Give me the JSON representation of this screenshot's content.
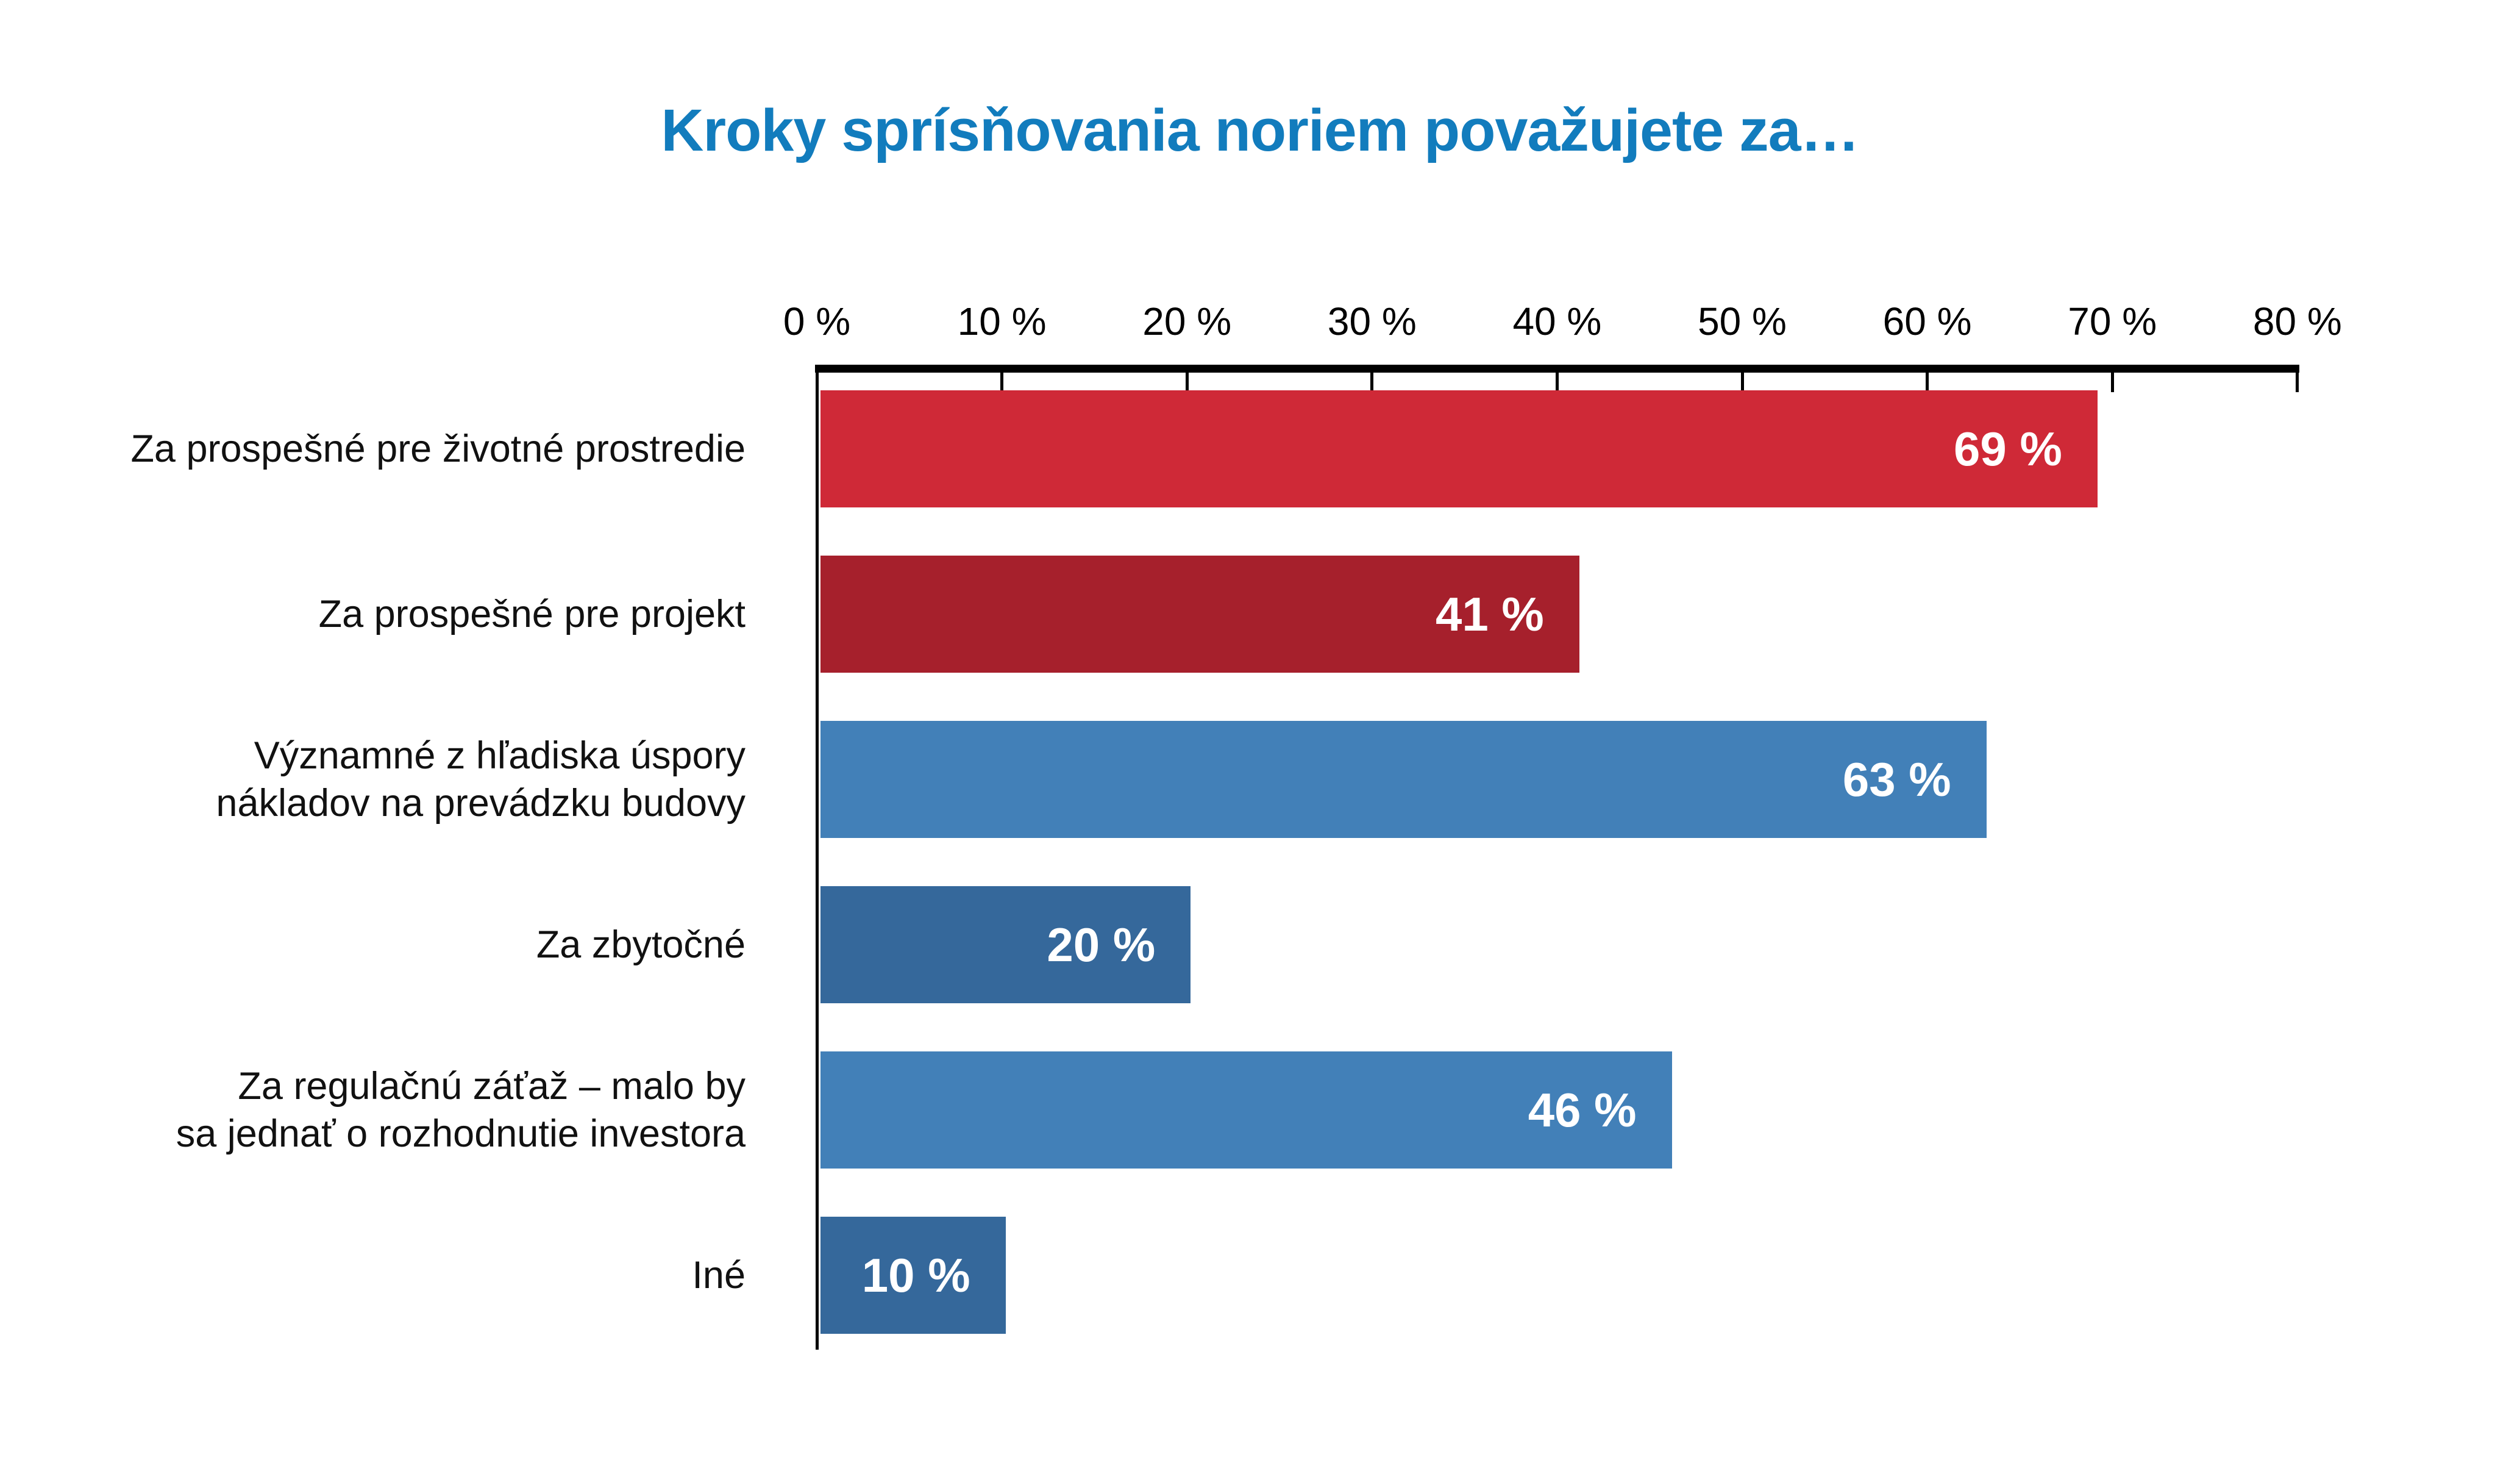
{
  "page": {
    "background": "#ffffff"
  },
  "title": {
    "text": "Kroky sprísňovania noriem považujete za…",
    "color": "#127CBD"
  },
  "chart_data": {
    "type": "bar",
    "orientation": "horizontal",
    "title": "Kroky sprísňovania noriem považujete za…",
    "categories": [
      "Za prospešné pre životné prostredie",
      "Za prospešné pre projekt",
      "Významné z hľadiska úspory nákladov na prevádzku budovy",
      "Za zbytočné",
      "Za regulačnú záťaž – malo by sa jednať o rozhodnutie investora",
      "Iné"
    ],
    "values": [
      69,
      41,
      63,
      20,
      46,
      10
    ],
    "rows": [
      {
        "label_lines": [
          "Za prospešné pre životné prostredie"
        ],
        "value": 69,
        "value_label": "69 %",
        "color": "#CF2937"
      },
      {
        "label_lines": [
          "Za prospešné pre projekt"
        ],
        "value": 41,
        "value_label": "41 %",
        "color": "#A6202C"
      },
      {
        "label_lines": [
          "Významné z hľadiska úspory",
          "nákladov na prevádzku budovy"
        ],
        "value": 63,
        "value_label": "63 %",
        "color": "#4280B8"
      },
      {
        "label_lines": [
          "Za zbytočné"
        ],
        "value": 20,
        "value_label": "20 %",
        "color": "#35689B"
      },
      {
        "label_lines": [
          "Za regulačnú záťaž – malo by",
          "sa jednať o rozhodnutie investora"
        ],
        "value": 46,
        "value_label": "46 %",
        "color": "#4280B8"
      },
      {
        "label_lines": [
          "Iné"
        ],
        "value": 10,
        "value_label": "10 %",
        "color": "#35689B"
      }
    ],
    "xlabel": "",
    "ylabel": "",
    "xlim": [
      0,
      80
    ],
    "x_ticks": [
      "0 %",
      "10 %",
      "20 %",
      "30 %",
      "40 %",
      "50 %",
      "60 %",
      "70 %",
      "80 %"
    ],
    "grid": false,
    "legend": null,
    "colors": {
      "axis": "#000000",
      "tick_label_text": "#000000",
      "category_label_text": "#111111",
      "value_label_text": "#ffffff",
      "background": "#ffffff"
    }
  }
}
